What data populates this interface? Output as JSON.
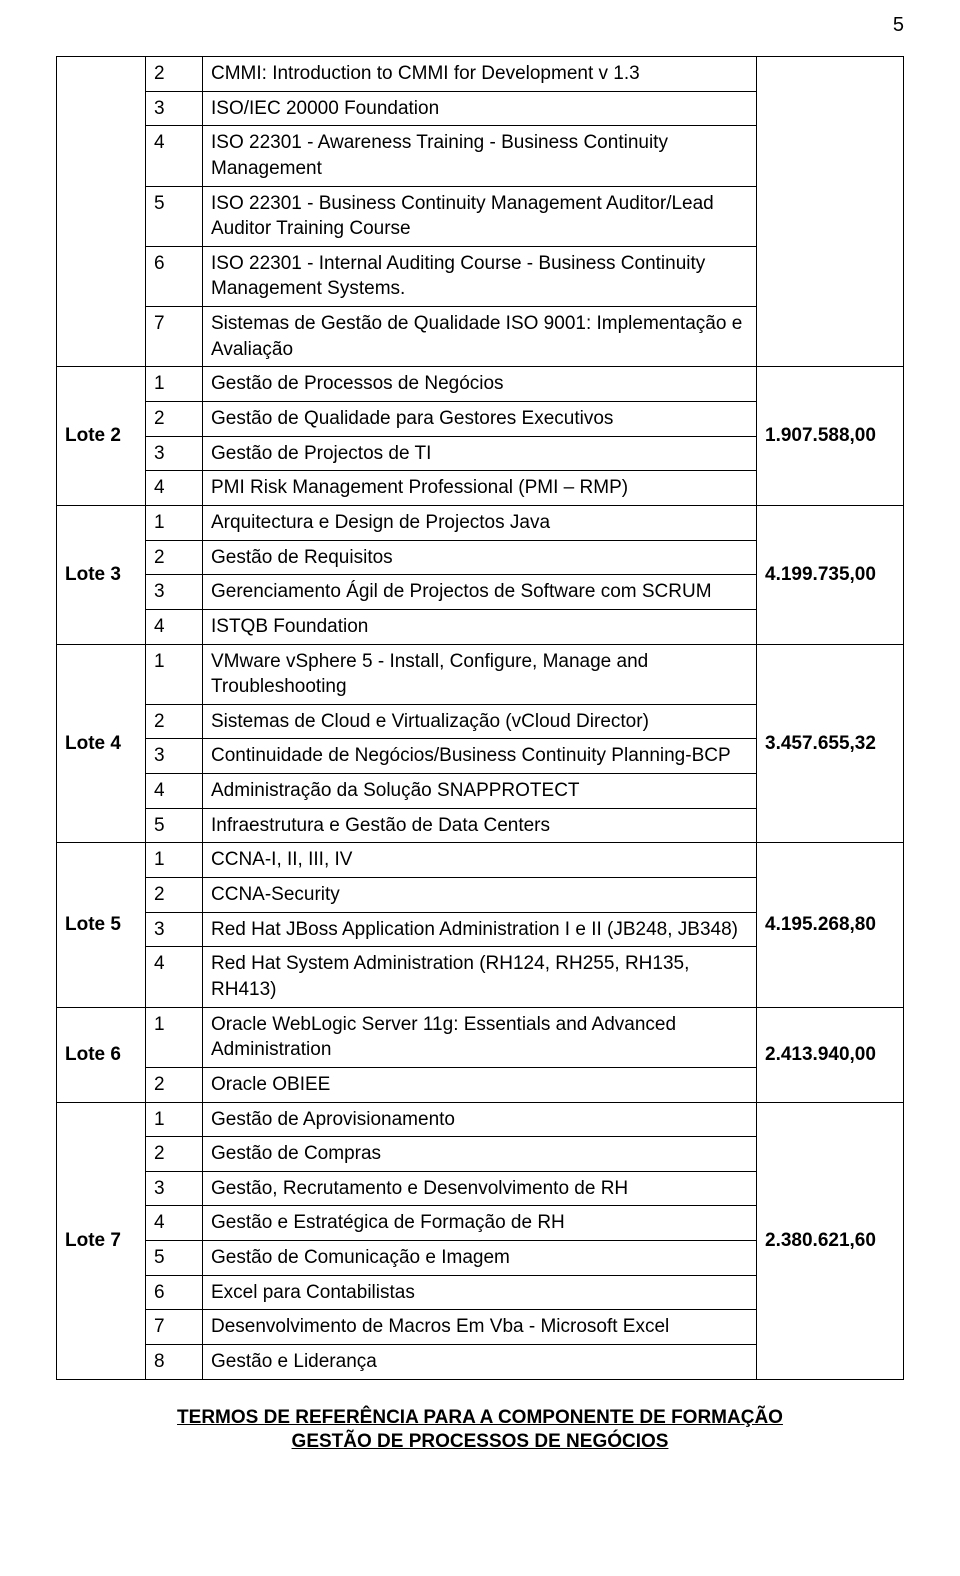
{
  "pageNumber": "5",
  "footer": {
    "line1": "TERMOS DE REFERÊNCIA PARA A COMPONENTE DE FORMAÇÃO",
    "line2": "GESTÃO DE PROCESSOS DE NEGÓCIOS"
  },
  "topRows": [
    {
      "n": "2",
      "d": "CMMI: Introduction to CMMI for Development v 1.3"
    },
    {
      "n": "3",
      "d": "ISO/IEC 20000 Foundation"
    },
    {
      "n": "4",
      "d": "ISO 22301 - Awareness Training - Business Continuity Management"
    },
    {
      "n": "5",
      "d": "ISO 22301 - Business Continuity Management Auditor/Lead Auditor Training Course"
    },
    {
      "n": "6",
      "d": "ISO 22301 - Internal Auditing Course - Business Continuity Management Systems."
    },
    {
      "n": "7",
      "d": "Sistemas de Gestão de Qualidade ISO 9001: Implementação e Avaliação"
    }
  ],
  "lotes": [
    {
      "label": "Lote 2",
      "price": "1.907.588,00",
      "items": [
        {
          "n": "1",
          "d": "Gestão de Processos de Negócios"
        },
        {
          "n": "2",
          "d": "Gestão de Qualidade para Gestores Executivos"
        },
        {
          "n": "3",
          "d": "Gestão de Projectos de TI"
        },
        {
          "n": "4",
          "d": "PMI Risk Management Professional (PMI – RMP)"
        }
      ]
    },
    {
      "label": "Lote 3",
      "price": "4.199.735,00",
      "items": [
        {
          "n": "1",
          "d": "Arquitectura e Design de Projectos Java"
        },
        {
          "n": "2",
          "d": "Gestão de Requisitos"
        },
        {
          "n": "3",
          "d": "Gerenciamento Ágil de Projectos de Software com SCRUM"
        },
        {
          "n": "4",
          "d": "ISTQB Foundation"
        }
      ]
    },
    {
      "label": "Lote 4",
      "price": "3.457.655,32",
      "items": [
        {
          "n": "1",
          "d": "VMware vSphere 5 - Install, Configure, Manage and Troubleshooting"
        },
        {
          "n": "2",
          "d": "Sistemas de Cloud e Virtualização (vCloud Director)"
        },
        {
          "n": "3",
          "d": "Continuidade de Negócios/Business Continuity Planning-BCP"
        },
        {
          "n": "4",
          "d": "Administração da Solução SNAPPROTECT"
        },
        {
          "n": "5",
          "d": "Infraestrutura e Gestão de Data Centers"
        }
      ]
    },
    {
      "label": "Lote 5",
      "price": "4.195.268,80",
      "items": [
        {
          "n": "1",
          "d": "CCNA-I, II, III, IV"
        },
        {
          "n": "2",
          "d": "CCNA-Security"
        },
        {
          "n": "3",
          "d": "Red Hat JBoss Application Administration I e II (JB248, JB348)"
        },
        {
          "n": "4",
          "d": "Red Hat System Administration (RH124, RH255, RH135, RH413)"
        }
      ]
    },
    {
      "label": "Lote 6",
      "price": "2.413.940,00",
      "items": [
        {
          "n": "1",
          "d": "Oracle WebLogic Server 11g: Essentials and Advanced Administration"
        },
        {
          "n": "2",
          "d": "Oracle OBIEE"
        }
      ]
    },
    {
      "label": "Lote 7",
      "price": "2.380.621,60",
      "items": [
        {
          "n": "1",
          "d": "Gestão de Aprovisionamento"
        },
        {
          "n": "2",
          "d": "Gestão de Compras"
        },
        {
          "n": "3",
          "d": "Gestão, Recrutamento e Desenvolvimento de RH"
        },
        {
          "n": "4",
          "d": "Gestão e Estratégica de Formação de RH"
        },
        {
          "n": "5",
          "d": "Gestão de Comunicação e Imagem"
        },
        {
          "n": "6",
          "d": "Excel para Contabilistas"
        },
        {
          "n": "7",
          "d": "Desenvolvimento de Macros Em Vba - Microsoft Excel"
        },
        {
          "n": "8",
          "d": "Gestão e Liderança"
        }
      ]
    }
  ]
}
